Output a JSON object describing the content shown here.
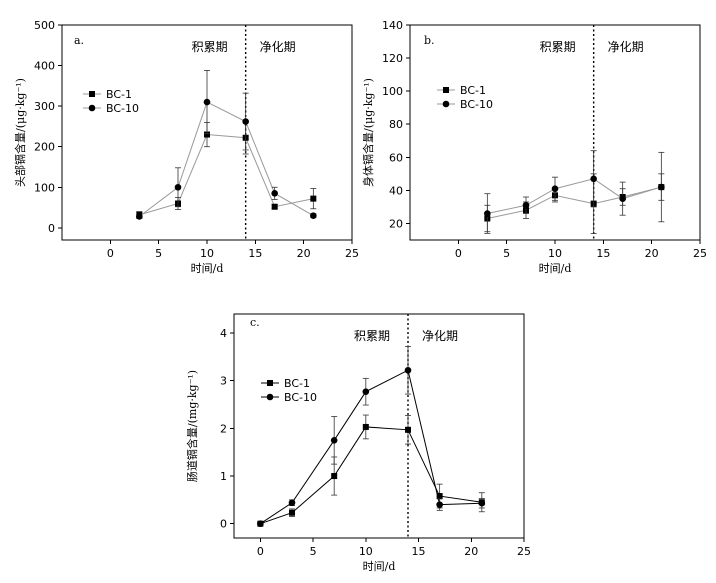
{
  "chart_data": [
    {
      "type": "line",
      "panel_label": "a.",
      "title": "",
      "xlabel": "时间/d",
      "ylabel": "头部镉含量/(μg·kg⁻¹)",
      "xlim": [
        -5,
        25
      ],
      "ylim": [
        -30,
        500
      ],
      "xticks": [
        0,
        5,
        10,
        15,
        20,
        25
      ],
      "yticks": [
        0,
        100,
        200,
        300,
        400,
        500
      ],
      "phase_divider_x": 14,
      "phase_labels": [
        "积累期",
        "净化期"
      ],
      "x": [
        3,
        7,
        10,
        14,
        17,
        21
      ],
      "series": [
        {
          "name": "BC-1",
          "marker": "square",
          "color": "#000000",
          "values": [
            32,
            60,
            230,
            222,
            52,
            72
          ],
          "errors": [
            8,
            15,
            30,
            40,
            5,
            25
          ]
        },
        {
          "name": "BC-10",
          "marker": "circle",
          "color": "#000000",
          "values": [
            28,
            100,
            310,
            262,
            85,
            30
          ],
          "errors": [
            5,
            48,
            78,
            70,
            15,
            5
          ]
        }
      ],
      "legend": [
        "BC-1",
        "BC-10"
      ],
      "line_color": "#999999",
      "legend_position": "left"
    },
    {
      "type": "line",
      "panel_label": "b.",
      "title": "",
      "xlabel": "时间/d",
      "ylabel": "身体镉含量/(μg·kg⁻¹)",
      "xlim": [
        -5,
        25
      ],
      "ylim": [
        10,
        140
      ],
      "xticks": [
        0,
        5,
        10,
        15,
        20,
        25
      ],
      "yticks": [
        20,
        40,
        60,
        80,
        100,
        120,
        140
      ],
      "phase_divider_x": 14,
      "phase_labels": [
        "积累期",
        "净化期"
      ],
      "x": [
        3,
        7,
        10,
        14,
        17,
        21
      ],
      "series": [
        {
          "name": "BC-1",
          "marker": "square",
          "color": "#000000",
          "values": [
            23,
            28,
            37,
            32,
            36,
            42
          ],
          "errors": [
            8,
            5,
            4,
            18,
            5,
            8
          ]
        },
        {
          "name": "BC-10",
          "marker": "circle",
          "color": "#000000",
          "values": [
            26,
            31,
            41,
            47,
            35,
            42
          ],
          "errors": [
            12,
            5,
            7,
            17,
            10,
            21
          ]
        }
      ],
      "legend": [
        "BC-1",
        "BC-10"
      ],
      "line_color": "#999999",
      "legend_position": "left"
    },
    {
      "type": "line",
      "panel_label": "c.",
      "title": "",
      "xlabel": "时间/d",
      "ylabel": "肠道镉含量/(mg·kg⁻¹)",
      "xlim": [
        -2.5,
        25
      ],
      "ylim": [
        -0.3,
        4.4
      ],
      "xticks": [
        0,
        5,
        10,
        15,
        20,
        25
      ],
      "yticks": [
        0,
        1,
        2,
        3,
        4
      ],
      "phase_divider_x": 14,
      "phase_labels": [
        "积累期",
        "净化期"
      ],
      "x": [
        0,
        3,
        7,
        10,
        14,
        17,
        21
      ],
      "series": [
        {
          "name": "BC-1",
          "marker": "square",
          "color": "#000000",
          "values": [
            0,
            0.23,
            1.0,
            2.03,
            1.97,
            0.58,
            0.45
          ],
          "errors": [
            0,
            0.08,
            0.4,
            0.25,
            0.3,
            0.25,
            0.2
          ]
        },
        {
          "name": "BC-10",
          "marker": "circle",
          "color": "#000000",
          "values": [
            0,
            0.44,
            1.75,
            2.77,
            3.22,
            0.4,
            0.43
          ],
          "errors": [
            0,
            0.06,
            0.5,
            0.28,
            0.5,
            0.12,
            0.1
          ]
        }
      ],
      "legend": [
        "BC-1",
        "BC-10"
      ],
      "line_color": "#000000",
      "legend_position": "left"
    }
  ]
}
